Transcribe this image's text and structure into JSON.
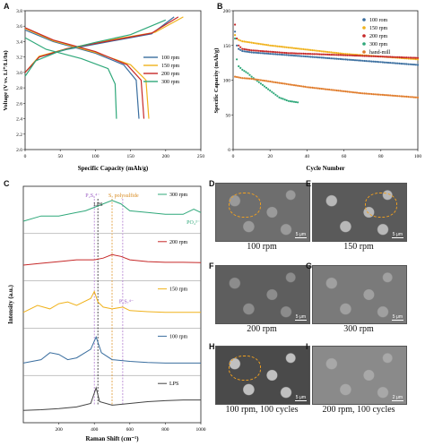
{
  "panels": {
    "A": {
      "label": "A",
      "xlabel": "Specific Capacity (mAh/g)",
      "ylabel": "Voltage (V vs. Li⁺/Li/In)",
      "xticks": [
        "0",
        "50",
        "100",
        "150",
        "200",
        "250"
      ],
      "yticks": [
        "2.0",
        "2.2",
        "2.4",
        "2.6",
        "2.8",
        "3.0",
        "3.2",
        "3.4",
        "3.6",
        "3.8"
      ],
      "legend": [
        "100 rpm",
        "150 rpm",
        "200 rpm",
        "300 rpm"
      ]
    },
    "B": {
      "label": "B",
      "xlabel": "Cycle Number",
      "ylabel": "Specific Capacity (mAh/g)",
      "xticks": [
        "0",
        "20",
        "40",
        "60",
        "80",
        "100"
      ],
      "yticks": [
        "0",
        "50",
        "100",
        "150",
        "200"
      ],
      "legend": [
        "100 rom",
        "150 rpm",
        "200 rpm",
        "300 rpm",
        "hand-mill"
      ]
    },
    "C": {
      "label": "C",
      "xlabel": "Raman Shift (cm⁻¹)",
      "ylabel": "Intensity (a.u.)",
      "xticks": [
        "200",
        "400",
        "600",
        "800",
        "1000"
      ],
      "traces": [
        "300 rpm",
        "200 rpm",
        "150 rpm",
        "100 rpm",
        "LPS"
      ],
      "annotations": {
        "p2s6": "P₂S₆⁴⁻",
        "lps": "LPS",
        "polysulfide": "Sₓ polysulfide",
        "po4": "PO₄³⁻",
        "p2s7": "P₂S₇⁴⁻"
      }
    },
    "sem": [
      {
        "label": "D",
        "caption": "100 rpm",
        "scale": "5 μm"
      },
      {
        "label": "E",
        "caption": "150 rpm",
        "scale": "5 μm"
      },
      {
        "label": "F",
        "caption": "200 rpm",
        "scale": "5 μm"
      },
      {
        "label": "G",
        "caption": "300 rpm",
        "scale": "5 μm"
      },
      {
        "label": "H",
        "caption": "100 rpm, 100 cycles",
        "scale": "5 μm"
      },
      {
        "label": "I",
        "caption": "200 rpm, 100 cycles",
        "scale": "2 μm"
      }
    ]
  },
  "colors": {
    "rpm100": "#3a6e9f",
    "rpm150": "#f0b21c",
    "rpm200": "#c62828",
    "rpm300": "#2fa87a",
    "handmill": "#e07b2a",
    "lps": "#444444"
  },
  "chart_data": [
    {
      "type": "line",
      "panel": "A",
      "xlabel": "Specific Capacity (mAh/g)",
      "ylabel": "Voltage (V vs. Li⁺/Li/In)",
      "xlim": [
        0,
        250
      ],
      "ylim": [
        2.0,
        3.8
      ],
      "series": [
        {
          "name": "100 rpm",
          "charge": [
            [
              0,
              3.0
            ],
            [
              20,
              3.2
            ],
            [
              60,
              3.3
            ],
            [
              120,
              3.4
            ],
            [
              180,
              3.5
            ],
            [
              212,
              3.72
            ]
          ],
          "discharge": [
            [
              0,
              3.55
            ],
            [
              40,
              3.4
            ],
            [
              100,
              3.25
            ],
            [
              140,
              3.1
            ],
            [
              158,
              2.9
            ],
            [
              162,
              2.4
            ]
          ]
        },
        {
          "name": "150 rpm",
          "charge": [
            [
              0,
              3.0
            ],
            [
              20,
              3.21
            ],
            [
              60,
              3.31
            ],
            [
              120,
              3.42
            ],
            [
              185,
              3.52
            ],
            [
              225,
              3.72
            ]
          ],
          "discharge": [
            [
              0,
              3.57
            ],
            [
              40,
              3.41
            ],
            [
              100,
              3.26
            ],
            [
              150,
              3.1
            ],
            [
              172,
              2.9
            ],
            [
              176,
              2.4
            ]
          ]
        },
        {
          "name": "200 rpm",
          "charge": [
            [
              0,
              3.0
            ],
            [
              20,
              3.2
            ],
            [
              60,
              3.31
            ],
            [
              120,
              3.41
            ],
            [
              180,
              3.51
            ],
            [
              218,
              3.72
            ]
          ],
          "discharge": [
            [
              0,
              3.58
            ],
            [
              40,
              3.42
            ],
            [
              100,
              3.27
            ],
            [
              145,
              3.1
            ],
            [
              165,
              2.9
            ],
            [
              169,
              2.4
            ]
          ]
        },
        {
          "name": "300 rpm",
          "charge": [
            [
              0,
              2.95
            ],
            [
              15,
              3.15
            ],
            [
              50,
              3.28
            ],
            [
              100,
              3.39
            ],
            [
              150,
              3.49
            ],
            [
              200,
              3.68
            ]
          ],
          "discharge": [
            [
              0,
              3.45
            ],
            [
              30,
              3.3
            ],
            [
              80,
              3.18
            ],
            [
              118,
              3.05
            ],
            [
              128,
              2.85
            ],
            [
              130,
              2.4
            ]
          ]
        }
      ]
    },
    {
      "type": "scatter",
      "panel": "B",
      "xlabel": "Cycle Number",
      "ylabel": "Specific Capacity (mAh/g)",
      "xlim": [
        0,
        100
      ],
      "ylim": [
        0,
        200
      ],
      "series": [
        {
          "name": "100 rom",
          "x": [
            1,
            2,
            3,
            5,
            10,
            20,
            30,
            40,
            50,
            60,
            70,
            80,
            90,
            100
          ],
          "values": [
            170,
            150,
            145,
            142,
            140,
            138,
            136,
            134,
            132,
            130,
            128,
            126,
            124,
            122
          ]
        },
        {
          "name": "150 rpm",
          "x": [
            1,
            2,
            3,
            5,
            10,
            20,
            30,
            40,
            50,
            60,
            70,
            80,
            90,
            100
          ],
          "values": [
            165,
            160,
            158,
            156,
            154,
            150,
            147,
            144,
            141,
            138,
            136,
            134,
            132,
            130
          ]
        },
        {
          "name": "200 rpm",
          "x": [
            1,
            2,
            3,
            5,
            10,
            20,
            30,
            40,
            50,
            60,
            70,
            80,
            90,
            100
          ],
          "values": [
            180,
            160,
            150,
            145,
            143,
            141,
            139,
            138,
            137,
            136,
            135,
            134,
            133,
            132
          ]
        },
        {
          "name": "300 rpm",
          "x": [
            1,
            2,
            3,
            5,
            8,
            10,
            15,
            20,
            25,
            30,
            35
          ],
          "values": [
            160,
            130,
            120,
            115,
            110,
            105,
            95,
            85,
            75,
            70,
            68
          ]
        },
        {
          "name": "hand-mill",
          "x": [
            1,
            5,
            10,
            20,
            30,
            40,
            50,
            60,
            70,
            80,
            90,
            100
          ],
          "values": [
            105,
            103,
            102,
            98,
            94,
            90,
            87,
            84,
            81,
            79,
            77,
            75
          ]
        }
      ]
    },
    {
      "type": "line",
      "panel": "C",
      "xlabel": "Raman Shift (cm⁻¹)",
      "ylabel": "Intensity (a.u.)",
      "xlim": [
        0,
        1000
      ],
      "series": [
        {
          "name": "300 rpm",
          "x": [
            0,
            100,
            200,
            300,
            350,
            400,
            450,
            500,
            550,
            600,
            700,
            800,
            900,
            960,
            1000
          ],
          "values": [
            0.2,
            0.35,
            0.35,
            0.45,
            0.5,
            0.6,
            0.7,
            0.8,
            0.7,
            0.5,
            0.45,
            0.4,
            0.4,
            0.55,
            0.45
          ]
        },
        {
          "name": "200 rpm",
          "x": [
            0,
            100,
            200,
            300,
            400,
            450,
            500,
            550,
            600,
            700,
            800,
            900,
            1000
          ],
          "values": [
            0.3,
            0.35,
            0.4,
            0.45,
            0.45,
            0.5,
            0.6,
            0.55,
            0.45,
            0.4,
            0.38,
            0.38,
            0.37
          ]
        },
        {
          "name": "150 rpm",
          "x": [
            0,
            80,
            150,
            200,
            250,
            300,
            380,
            400,
            420,
            450,
            500,
            560,
            600,
            700,
            800,
            900,
            1000
          ],
          "values": [
            0.3,
            0.5,
            0.4,
            0.55,
            0.6,
            0.5,
            0.7,
            0.9,
            0.6,
            0.45,
            0.4,
            0.45,
            0.35,
            0.32,
            0.3,
            0.3,
            0.3
          ]
        },
        {
          "name": "100 rpm",
          "x": [
            0,
            100,
            150,
            200,
            250,
            300,
            380,
            410,
            440,
            500,
            600,
            700,
            800,
            900,
            1000
          ],
          "values": [
            0.2,
            0.3,
            0.5,
            0.45,
            0.3,
            0.35,
            0.6,
            0.95,
            0.5,
            0.3,
            0.25,
            0.22,
            0.2,
            0.2,
            0.2
          ]
        },
        {
          "name": "LPS",
          "x": [
            0,
            100,
            200,
            300,
            380,
            410,
            430,
            500,
            600,
            700,
            800,
            900,
            1000
          ],
          "values": [
            0.2,
            0.22,
            0.25,
            0.3,
            0.4,
            0.85,
            0.45,
            0.35,
            0.4,
            0.45,
            0.48,
            0.5,
            0.5
          ]
        }
      ]
    }
  ]
}
